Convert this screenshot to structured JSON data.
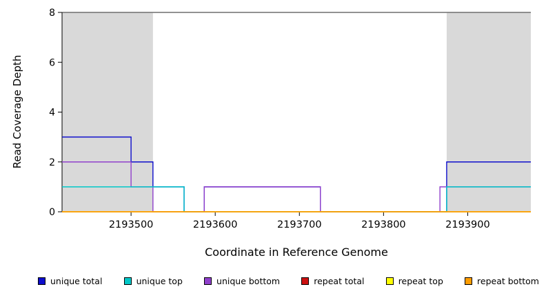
{
  "chart_data": {
    "type": "line",
    "subtype": "step-coverage",
    "xlabel": "Coordinate in Reference Genome",
    "ylabel": "Read Coverage Depth",
    "xlim": [
      2193418,
      2193975
    ],
    "ylim": [
      0,
      8
    ],
    "xticks": [
      2193500,
      2193600,
      2193700,
      2193800,
      2193900
    ],
    "yticks": [
      0,
      2,
      4,
      6,
      8
    ],
    "grid": false,
    "legend_position": "bottom",
    "colors": {
      "shaded_region": "#d9d9d9",
      "top_border": "#6e6e6e",
      "axis": "#000000",
      "background": "#ffffff"
    },
    "shaded_regions": [
      {
        "x0": 2193418,
        "x1": 2193526
      },
      {
        "x0": 2193875,
        "x1": 2193975
      }
    ],
    "series": [
      {
        "name": "unique total",
        "color": "#0d0dcc",
        "segments": [
          [
            2193418,
            2193500,
            3
          ],
          [
            2193500,
            2193526,
            2
          ],
          [
            2193526,
            2193563,
            1
          ],
          [
            2193563,
            2193587,
            0
          ],
          [
            2193587,
            2193725,
            1
          ],
          [
            2193725,
            2193875,
            0
          ],
          [
            2193875,
            2193975,
            2
          ]
        ]
      },
      {
        "name": "unique bottom",
        "color": "#9040cc",
        "segments": [
          [
            2193418,
            2193500,
            2
          ],
          [
            2193500,
            2193526,
            1
          ],
          [
            2193526,
            2193587,
            0
          ],
          [
            2193587,
            2193725,
            1
          ],
          [
            2193725,
            2193867,
            0
          ],
          [
            2193867,
            2193975,
            1
          ]
        ]
      },
      {
        "name": "unique top",
        "color": "#00c8c8",
        "segments": [
          [
            2193418,
            2193563,
            1
          ],
          [
            2193563,
            2193875,
            0
          ],
          [
            2193875,
            2193975,
            1
          ]
        ]
      },
      {
        "name": "repeat total",
        "color": "#cc1111",
        "segments": [
          [
            2193418,
            2193975,
            0
          ]
        ]
      },
      {
        "name": "repeat top",
        "color": "#ffff00",
        "segments": [
          [
            2193418,
            2193975,
            0
          ]
        ]
      },
      {
        "name": "repeat bottom",
        "color": "#ff9d00",
        "segments": [
          [
            2193418,
            2193975,
            0
          ]
        ]
      }
    ],
    "legend": [
      {
        "label": "unique total",
        "color": "#0d0dcc"
      },
      {
        "label": "unique top",
        "color": "#00c8c8"
      },
      {
        "label": "unique bottom",
        "color": "#9040cc"
      },
      {
        "label": "repeat total",
        "color": "#cc1111"
      },
      {
        "label": "repeat top",
        "color": "#ffff00"
      },
      {
        "label": "repeat bottom",
        "color": "#ff9d00"
      }
    ]
  }
}
